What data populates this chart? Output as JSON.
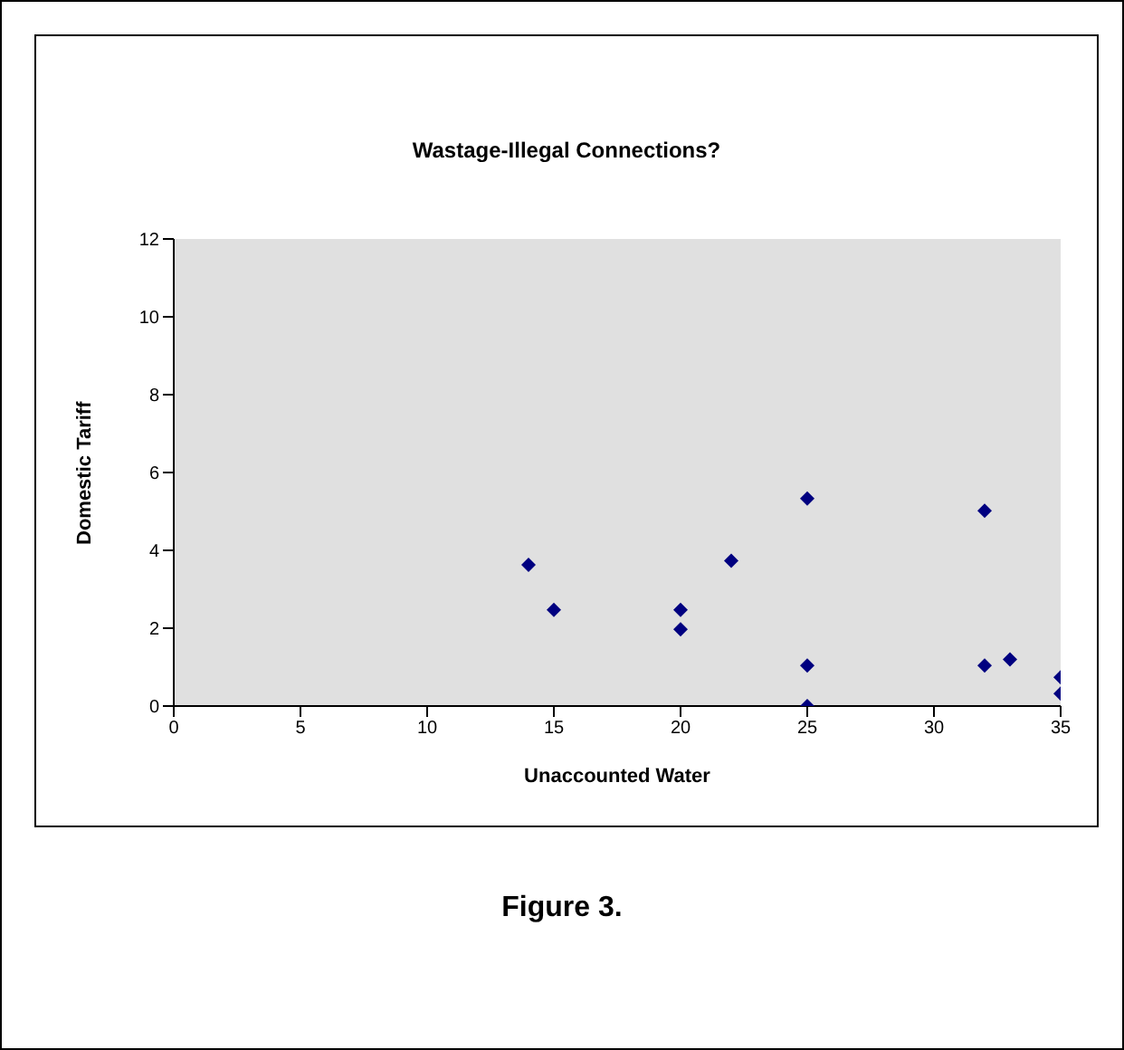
{
  "chart_data": {
    "type": "scatter",
    "title": "Wastage-Illegal Connections?",
    "xlabel": "Unaccounted Water",
    "ylabel": "Domestic Tariff",
    "x": [
      14,
      15,
      20,
      20,
      22,
      25,
      25,
      25,
      32,
      32,
      33,
      35,
      35
    ],
    "values": [
      3.63,
      2.47,
      2.47,
      1.97,
      3.73,
      5.33,
      1.04,
      0,
      5.02,
      1.04,
      1.2,
      0.74,
      0.32
    ],
    "color": "#000080",
    "marker": "diamond",
    "xlim": [
      0,
      35
    ],
    "xticks": [
      0,
      5,
      10,
      15,
      20,
      25,
      30,
      35
    ],
    "ylim": [
      0,
      12
    ],
    "yticks": [
      0,
      2,
      4,
      6,
      8,
      10,
      12
    ],
    "grid": false,
    "legend": false,
    "annotations": [
      "Figure 3."
    ]
  }
}
